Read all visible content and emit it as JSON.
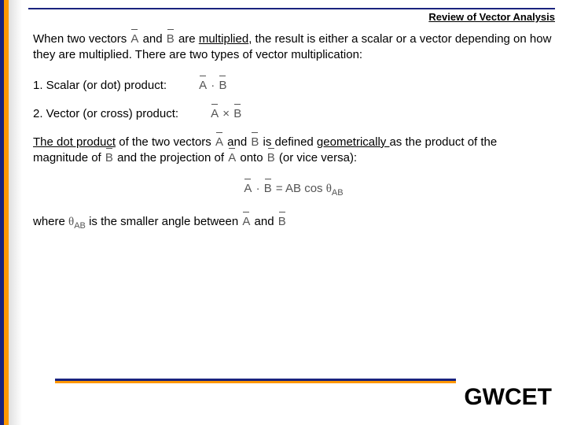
{
  "header": {
    "title": "Review of Vector Analysis"
  },
  "intro": {
    "p1a": "When two vectors ",
    "p1b": " and ",
    "p1c": " are ",
    "p1d": "multiplied",
    "p1e": ", the result is either a scalar or a vector depending on how they are multiplied. There are two types of vector multiplication:"
  },
  "items": {
    "scalar_label": "1. Scalar (or dot) product:",
    "vector_label": "2. Vector (or cross) product:",
    "dot_expr_a": "A",
    "dot_op": "·",
    "dot_expr_b": "B",
    "cross_expr_a": "A",
    "cross_op": "×",
    "cross_expr_b": "B"
  },
  "dotdef": {
    "t1": "The dot product",
    "t2": " of the two vectors ",
    "t3": " and ",
    "t4": " is defined ",
    "t5": "geometrically ",
    "t6": "as the product of the magnitude of ",
    "t7": " and the projection of ",
    "t8": " onto ",
    "t9": " (or vice versa):"
  },
  "formula": {
    "lhs_a": "A",
    "lhs_op": "·",
    "lhs_b": "B",
    "eq": "=",
    "rhs_ab": "AB",
    "rhs_cos": "cos",
    "rhs_theta": "θ",
    "rhs_sub": "AB"
  },
  "where": {
    "w1": "where ",
    "theta": "θ",
    "sub": "AB",
    "w2": " is the smaller angle between ",
    "w3": " and "
  },
  "vectors": {
    "A": "A",
    "B": "B"
  },
  "footer": {
    "brand": "GWCET"
  }
}
